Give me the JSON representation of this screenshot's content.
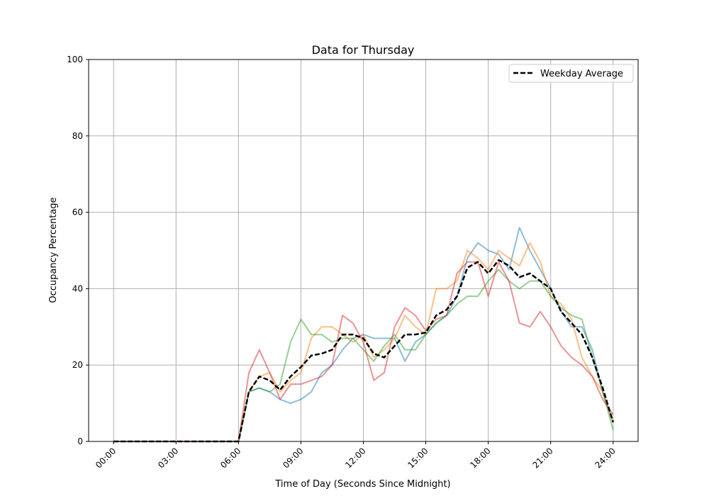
{
  "chart_data": {
    "type": "line",
    "title": "Data for Thursday",
    "xlabel": "Time of Day (Seconds Since Midnight)",
    "ylabel": "Occupancy Percentage",
    "ylim": [
      0,
      100
    ],
    "xlim_hours": [
      -1.2,
      25.2
    ],
    "grid": true,
    "legend_placement": "top-right",
    "x_ticks": [
      "00:00",
      "03:00",
      "06:00",
      "09:00",
      "12:00",
      "15:00",
      "18:00",
      "21:00",
      "24:00"
    ],
    "y_ticks": [
      0,
      20,
      40,
      60,
      80,
      100
    ],
    "x": [
      "00:00",
      "06:00",
      "06:30",
      "07:00",
      "07:30",
      "08:00",
      "08:30",
      "09:00",
      "09:30",
      "10:00",
      "10:30",
      "11:00",
      "11:30",
      "12:00",
      "12:30",
      "13:00",
      "13:30",
      "14:00",
      "14:30",
      "15:00",
      "15:30",
      "16:00",
      "16:30",
      "17:00",
      "17:30",
      "18:00",
      "18:30",
      "19:00",
      "19:30",
      "20:00",
      "20:30",
      "21:00",
      "21:30",
      "22:00",
      "22:30",
      "23:00",
      "23:30",
      "24:00"
    ],
    "series": [
      {
        "color": "#1f77b4",
        "style": "solid",
        "values": [
          0,
          0,
          13,
          14,
          13,
          11,
          10,
          11,
          13,
          18,
          20,
          24,
          27,
          28,
          27,
          27,
          27,
          21,
          26,
          28,
          31,
          33,
          38,
          48,
          52,
          50,
          49,
          45,
          56,
          50,
          45,
          40,
          34,
          30,
          30,
          24,
          13,
          5
        ]
      },
      {
        "color": "#ff7f0e",
        "style": "solid",
        "values": [
          0,
          0,
          13,
          17,
          18,
          13,
          16,
          18,
          27,
          30,
          30,
          28,
          26,
          28,
          22,
          24,
          27,
          33,
          30,
          28,
          40,
          40,
          42,
          50,
          48,
          45,
          50,
          48,
          46,
          52,
          47,
          38,
          36,
          32,
          22,
          17,
          13,
          5
        ]
      },
      {
        "color": "#2ca02c",
        "style": "solid",
        "values": [
          0,
          0,
          13,
          14,
          13,
          15,
          26,
          32,
          28,
          28,
          26,
          27,
          27,
          24,
          21,
          25,
          28,
          24,
          24,
          28,
          31,
          33,
          36,
          38,
          38,
          42,
          45,
          42,
          40,
          42,
          42,
          38,
          35,
          33,
          32,
          22,
          13,
          3
        ]
      },
      {
        "color": "#d62728",
        "style": "solid",
        "values": [
          0,
          0,
          18,
          24,
          18,
          11,
          15,
          15,
          16,
          17,
          20,
          33,
          31,
          26,
          16,
          18,
          30,
          35,
          33,
          29,
          32,
          33,
          44,
          47,
          47,
          38,
          47,
          42,
          31,
          30,
          34,
          30,
          25,
          22,
          20,
          17,
          11,
          7
        ]
      },
      {
        "name": "Weekday Average",
        "color": "#000000",
        "style": "dashed",
        "values": [
          0,
          0,
          13,
          17,
          16,
          13.5,
          17,
          19.5,
          22.5,
          23,
          24,
          28,
          28,
          27,
          23,
          22,
          25,
          28,
          28,
          28.5,
          33,
          34.5,
          38,
          45.5,
          47,
          44,
          47.5,
          46,
          43,
          44,
          42,
          40,
          34,
          31,
          28,
          22,
          14,
          5
        ]
      }
    ]
  }
}
